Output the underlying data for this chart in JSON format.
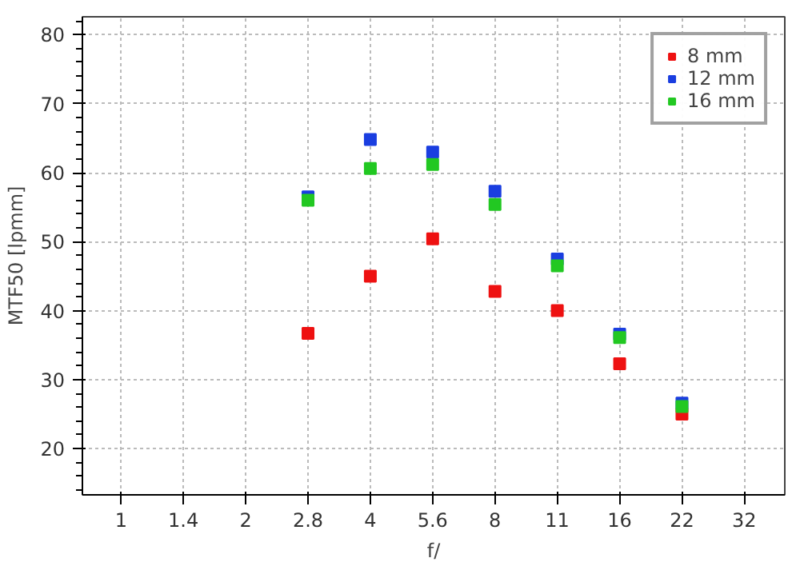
{
  "chart_data": {
    "type": "scatter",
    "xlabel": "f/",
    "ylabel": "MTF50 [lpmm]",
    "categories": [
      "1",
      "1.4",
      "2",
      "2.8",
      "4",
      "5.6",
      "8",
      "11",
      "16",
      "22",
      "32"
    ],
    "series": [
      {
        "name": "8 mm",
        "color": "#ee1111",
        "values": [
          null,
          null,
          null,
          36.7,
          45,
          50.4,
          42.8,
          40,
          32.3,
          25,
          null
        ]
      },
      {
        "name": "12 mm",
        "color": "#1a3ee0",
        "values": [
          null,
          null,
          null,
          56.5,
          64.8,
          63,
          57.3,
          47.5,
          36.6,
          26.6,
          null
        ]
      },
      {
        "name": "16 mm",
        "color": "#22c822",
        "values": [
          null,
          null,
          null,
          56,
          60.6,
          61.2,
          55.4,
          46.5,
          36.1,
          26.1,
          null
        ]
      }
    ],
    "ylim": [
      13.3,
      82.6
    ],
    "yticks": [
      20,
      30,
      40,
      50,
      60,
      70,
      80
    ],
    "grid": true,
    "legend": "top right",
    "marker": "square"
  }
}
